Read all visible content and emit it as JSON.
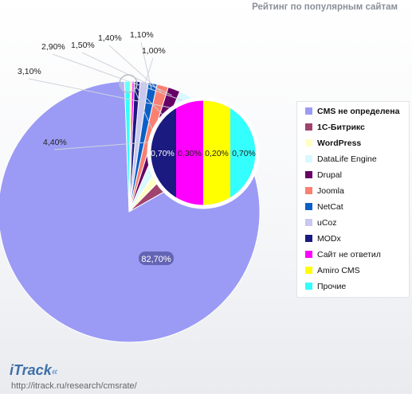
{
  "title": "Рейтинг по популярным сайтам",
  "chart_data": {
    "type": "pie",
    "title": "Рейтинг по популярным сайтам",
    "slices": [
      {
        "name": "CMS не определена",
        "value": 82.7,
        "label": "82,70%",
        "color": "#9b9bf5"
      },
      {
        "name": "1С-Битрикс",
        "value": 4.4,
        "label": "4,40%",
        "color": "#a0436e"
      },
      {
        "name": "WordPress",
        "value": 3.1,
        "label": "3,10%",
        "color": "#ffffc4"
      },
      {
        "name": "DataLife Engine",
        "value": 2.9,
        "label": "2,90%",
        "color": "#d9f8ff"
      },
      {
        "name": "Drupal",
        "value": 1.5,
        "label": "1,50%",
        "color": "#660066"
      },
      {
        "name": "Joomla",
        "value": 1.4,
        "label": "1,40%",
        "color": "#fa8072"
      },
      {
        "name": "NetCat",
        "value": 1.1,
        "label": "1,10%",
        "color": "#0a5fc8"
      },
      {
        "name": "uCoz",
        "value": 1.0,
        "label": "1,00%",
        "color": "#c8c8f0"
      },
      {
        "name": "MODx",
        "value": 0.7,
        "label": "0,70%",
        "color": "#1a1a80"
      },
      {
        "name": "Сайт не ответил",
        "value": 0.3,
        "label": "0,30%",
        "color": "#ff00ff"
      },
      {
        "name": "Amiro CMS",
        "value": 0.2,
        "label": "0,20%",
        "color": "#ffff00"
      },
      {
        "name": "Прочие",
        "value": 0.7,
        "label": "0,70%",
        "color": "#33ffff"
      }
    ],
    "zoom": {
      "slices": [
        "MODx",
        "Сайт не ответил",
        "Amiro CMS",
        "Прочие"
      ]
    },
    "legend": {
      "placement": "right",
      "bold": [
        "CMS не определена",
        "1С-Битрикс",
        "WordPress"
      ]
    }
  },
  "logo": {
    "text": "iTrack",
    "arrows": "«"
  },
  "source": "http://itrack.ru/research/cmsrate/"
}
